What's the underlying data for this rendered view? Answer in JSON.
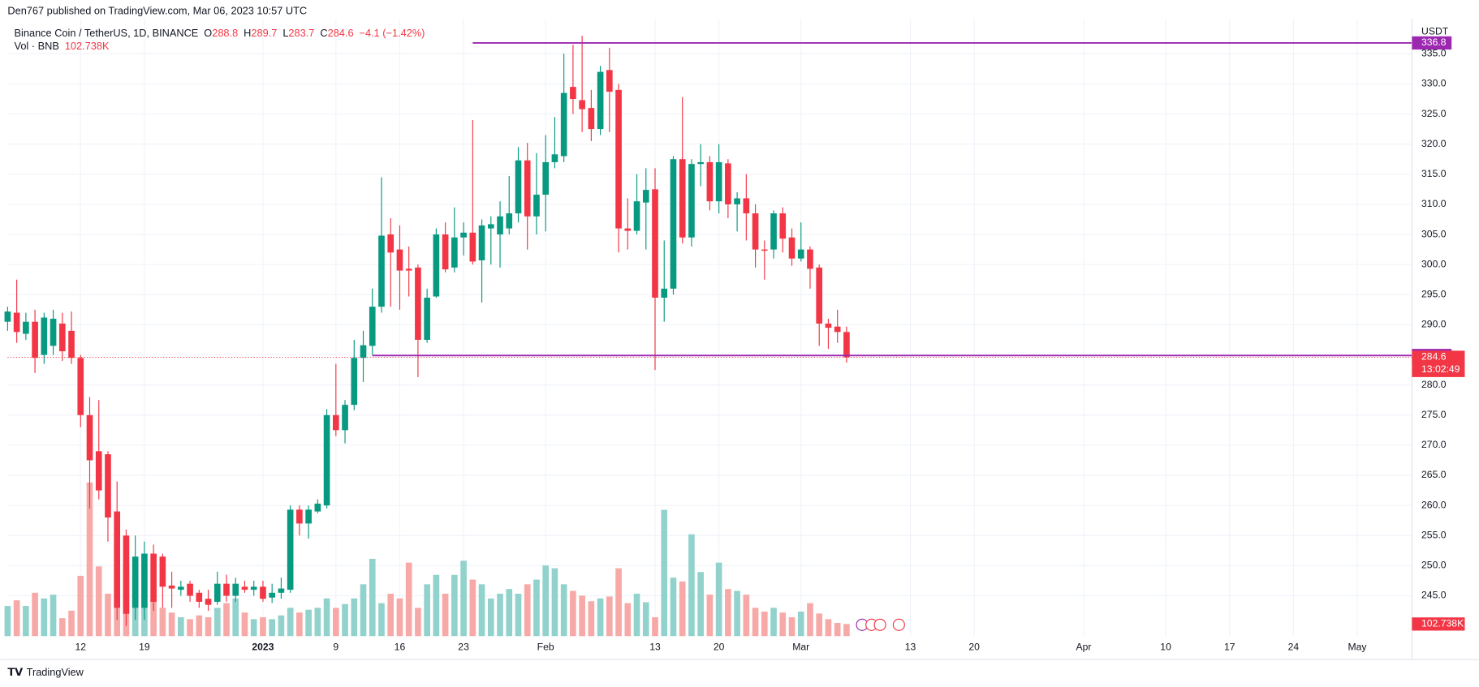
{
  "header": {
    "byline": "Den767 published on TradingView.com, Mar 06, 2023 10:57 UTC",
    "logo": "TradingView"
  },
  "chart_data": {
    "type": "candlestick",
    "legend": {
      "symbol": "Binance Coin / TetherUS, 1D, BINANCE",
      "o": "O",
      "h": "H",
      "l": "L",
      "c": "C",
      "change": "−4.1 (−1.42%)"
    },
    "currency": "USDT",
    "countdown": "13:02:49",
    "up_color": "#089981",
    "down_color": "#f23645",
    "volume_up_color": "#92d2cc",
    "volume_down_color": "#f7a9a7",
    "grid": true,
    "x": [
      "2022-12-04",
      "2022-12-05",
      "2022-12-06",
      "2022-12-07",
      "2022-12-08",
      "2022-12-09",
      "2022-12-10",
      "2022-12-11",
      "2022-12-12",
      "2022-12-13",
      "2022-12-14",
      "2022-12-15",
      "2022-12-16",
      "2022-12-17",
      "2022-12-18",
      "2022-12-19",
      "2022-12-20",
      "2022-12-21",
      "2022-12-22",
      "2022-12-23",
      "2022-12-24",
      "2022-12-25",
      "2022-12-26",
      "2022-12-27",
      "2022-12-28",
      "2022-12-29",
      "2022-12-30",
      "2022-12-31",
      "2023-01-01",
      "2023-01-02",
      "2023-01-03",
      "2023-01-04",
      "2023-01-05",
      "2023-01-06",
      "2023-01-07",
      "2023-01-08",
      "2023-01-09",
      "2023-01-10",
      "2023-01-11",
      "2023-01-12",
      "2023-01-13",
      "2023-01-14",
      "2023-01-15",
      "2023-01-16",
      "2023-01-17",
      "2023-01-18",
      "2023-01-19",
      "2023-01-20",
      "2023-01-21",
      "2023-01-22",
      "2023-01-23",
      "2023-01-24",
      "2023-01-25",
      "2023-01-26",
      "2023-01-27",
      "2023-01-28",
      "2023-01-29",
      "2023-01-30",
      "2023-01-31",
      "2023-02-01",
      "2023-02-02",
      "2023-02-03",
      "2023-02-04",
      "2023-02-05",
      "2023-02-06",
      "2023-02-07",
      "2023-02-08",
      "2023-02-09",
      "2023-02-10",
      "2023-02-11",
      "2023-02-12",
      "2023-02-13",
      "2023-02-14",
      "2023-02-15",
      "2023-02-16",
      "2023-02-17",
      "2023-02-18",
      "2023-02-19",
      "2023-02-20",
      "2023-02-21",
      "2023-02-22",
      "2023-02-23",
      "2023-02-24",
      "2023-02-25",
      "2023-02-26",
      "2023-02-27",
      "2023-02-28",
      "2023-03-01",
      "2023-03-02",
      "2023-03-03",
      "2023-03-04",
      "2023-03-05",
      "2023-03-06"
    ],
    "open": [
      290.5,
      292,
      288.5,
      290.5,
      285,
      286.5,
      290.2,
      289,
      284.5,
      275,
      269,
      268.5,
      259,
      255,
      243,
      243,
      252,
      251.5,
      246.7,
      246,
      247,
      245.5,
      244.5,
      244,
      247,
      245,
      246.5,
      246,
      246.5,
      244.7,
      245.5,
      246,
      259.3,
      257,
      259,
      260,
      275,
      272.5,
      276.7,
      284.5,
      286.5,
      293,
      305,
      302.5,
      299.3,
      299.5,
      287.5,
      294.7,
      305,
      299.5,
      304.5,
      305.3,
      300.7,
      306,
      305,
      306,
      308.5,
      317.3,
      308,
      311.6,
      317,
      318,
      329.5,
      327.3,
      326,
      322.5,
      332.3,
      329,
      306,
      305.6,
      310.3,
      312.5,
      294.5,
      296,
      317.5,
      304.5,
      316.7,
      317,
      310.5,
      316.8,
      310,
      311,
      308.5,
      302.5,
      302.5,
      308.5,
      304.5,
      301,
      302.5,
      299.5,
      290.2,
      289.7,
      288.8
    ],
    "high": [
      293,
      297.5,
      292,
      292.5,
      292,
      292.5,
      292,
      292.2,
      285,
      278,
      277.5,
      269,
      264,
      256,
      255,
      254,
      253.5,
      252,
      249,
      247.5,
      247.5,
      246,
      246,
      249,
      248.5,
      248,
      247.5,
      247.5,
      247.5,
      247,
      248,
      260,
      260,
      260,
      261,
      276,
      283.5,
      277.5,
      287.5,
      289,
      296,
      314.5,
      307.7,
      306.5,
      303,
      300,
      296,
      306,
      307,
      309.5,
      307,
      324,
      307.5,
      308,
      310.5,
      314.7,
      319.5,
      320.2,
      318.5,
      321.5,
      324.5,
      335,
      336.5,
      338,
      329,
      333,
      336,
      330,
      311,
      315,
      316,
      316,
      304,
      318,
      327.8,
      317.5,
      320,
      318,
      320,
      317.5,
      312,
      315,
      310,
      304,
      309,
      309.5,
      306,
      307,
      303,
      300,
      291,
      292.5,
      289.7
    ],
    "low": [
      289,
      287,
      287.5,
      282,
      283.5,
      285,
      284,
      283.5,
      273,
      259.5,
      261,
      254,
      241,
      240,
      241,
      241,
      242.5,
      243,
      243,
      245,
      244,
      243,
      242.5,
      243.5,
      244,
      244,
      245.5,
      245,
      244,
      243.8,
      244.5,
      245.5,
      255,
      254.5,
      258.7,
      259.5,
      271.5,
      270.3,
      275.8,
      280.5,
      285,
      292,
      293,
      292.5,
      294.7,
      281.3,
      287,
      294.5,
      298.7,
      298.7,
      301.5,
      300,
      293.7,
      300,
      299.5,
      305,
      307,
      302.5,
      305,
      305.5,
      316,
      317,
      325,
      322,
      320.5,
      321.5,
      322,
      302,
      302.5,
      305,
      302.5,
      282.5,
      290.5,
      295,
      303.5,
      303,
      313,
      309,
      308.5,
      307.7,
      305.5,
      304,
      299.5,
      297.5,
      301,
      302,
      299.8,
      300.5,
      296,
      286.5,
      286,
      287,
      283.7
    ],
    "close": [
      292.2,
      288.8,
      290.5,
      284.5,
      291.2,
      291,
      285.6,
      284.5,
      275,
      267.5,
      262.5,
      258,
      243,
      242,
      251.5,
      252,
      244,
      246.5,
      246.2,
      246.5,
      245,
      244,
      243.5,
      247,
      245,
      247,
      246,
      246.5,
      244.5,
      245.5,
      246.2,
      259.3,
      257,
      259.3,
      260.3,
      275,
      272.5,
      276.7,
      284.5,
      286.6,
      293,
      304.8,
      302,
      299,
      299,
      287.5,
      294.5,
      305,
      299.2,
      304.5,
      305.3,
      300.5,
      306.5,
      306.7,
      308,
      308.5,
      317.3,
      308,
      311.6,
      317,
      318.3,
      328.5,
      327.5,
      325.8,
      322.5,
      332,
      328.7,
      306,
      305.6,
      310.5,
      312.4,
      294.5,
      296,
      317.5,
      304.5,
      316.7,
      317,
      310.5,
      317,
      310,
      311,
      308.5,
      302.5,
      302.3,
      308.5,
      304.3,
      301,
      302.5,
      299.3,
      290.2,
      289.5,
      288.8,
      284.6
    ],
    "volume": {
      "name": "Vol · BNB",
      "axis": "y2",
      "last_label": "102.738K",
      "values": [
        256,
        304,
        256,
        368,
        320,
        352,
        152,
        216,
        512,
        1304,
        592,
        360,
        800,
        600,
        520,
        280,
        320,
        240,
        200,
        160,
        144,
        176,
        160,
        240,
        280,
        320,
        200,
        144,
        160,
        144,
        176,
        240,
        200,
        224,
        240,
        320,
        240,
        272,
        320,
        440,
        656,
        280,
        360,
        320,
        624,
        240,
        440,
        520,
        360,
        520,
        640,
        480,
        440,
        320,
        360,
        400,
        360,
        440,
        480,
        600,
        576,
        440,
        384,
        344,
        296,
        320,
        336,
        576,
        280,
        360,
        288,
        160,
        1072,
        496,
        464,
        864,
        544,
        352,
        624,
        400,
        384,
        352,
        240,
        208,
        240,
        200,
        160,
        208,
        280,
        192,
        144,
        112,
        102.738
      ]
    },
    "hlines": [
      {
        "value": 336.8,
        "from": "2023-01-24",
        "color": "#9c27b0"
      },
      {
        "value": 284.9,
        "from": "2023-01-13",
        "color": "#9c27b0"
      }
    ],
    "xlim": [
      "2022-12-04",
      "2023-05-07"
    ],
    "xticks": [
      {
        "value": "2022-12-12",
        "label": "12"
      },
      {
        "value": "2022-12-19",
        "label": "19"
      },
      {
        "value": "2023-01-01",
        "label": "2023"
      },
      {
        "value": "2023-01-09",
        "label": "9"
      },
      {
        "value": "2023-01-16",
        "label": "16"
      },
      {
        "value": "2023-01-23",
        "label": "23"
      },
      {
        "value": "2023-02-01",
        "label": "Feb"
      },
      {
        "value": "2023-02-13",
        "label": "13"
      },
      {
        "value": "2023-02-20",
        "label": "20"
      },
      {
        "value": "2023-03-01",
        "label": "Mar"
      },
      {
        "value": "2023-03-13",
        "label": "13"
      },
      {
        "value": "2023-03-20",
        "label": "20"
      },
      {
        "value": "2023-04-01",
        "label": "Apr"
      },
      {
        "value": "2023-04-10",
        "label": "10"
      },
      {
        "value": "2023-04-17",
        "label": "17"
      },
      {
        "value": "2023-04-24",
        "label": "24"
      },
      {
        "value": "2023-05-01",
        "label": "May"
      }
    ],
    "ylim": [
      238.3,
      340.8
    ],
    "yticks": [
      {
        "value": 245,
        "label": "245.0"
      },
      {
        "value": 250,
        "label": "250.0"
      },
      {
        "value": 255,
        "label": "255.0"
      },
      {
        "value": 260,
        "label": "260.0"
      },
      {
        "value": 265,
        "label": "265.0"
      },
      {
        "value": 270,
        "label": "270.0"
      },
      {
        "value": 275,
        "label": "275.0"
      },
      {
        "value": 280,
        "label": "280.0"
      },
      {
        "value": 285,
        "label": "285.0"
      },
      {
        "value": 290,
        "label": "290.0"
      },
      {
        "value": 295,
        "label": "295.0"
      },
      {
        "value": 300,
        "label": "300.0"
      },
      {
        "value": 305,
        "label": "305.0"
      },
      {
        "value": 310,
        "label": "310.0"
      },
      {
        "value": 315,
        "label": "315.0"
      },
      {
        "value": 320,
        "label": "320.0"
      },
      {
        "value": 325,
        "label": "325.0"
      },
      {
        "value": 330,
        "label": "330.0"
      },
      {
        "value": 335,
        "label": "335.0"
      }
    ],
    "y2lim": [
      0,
      5240
    ]
  }
}
